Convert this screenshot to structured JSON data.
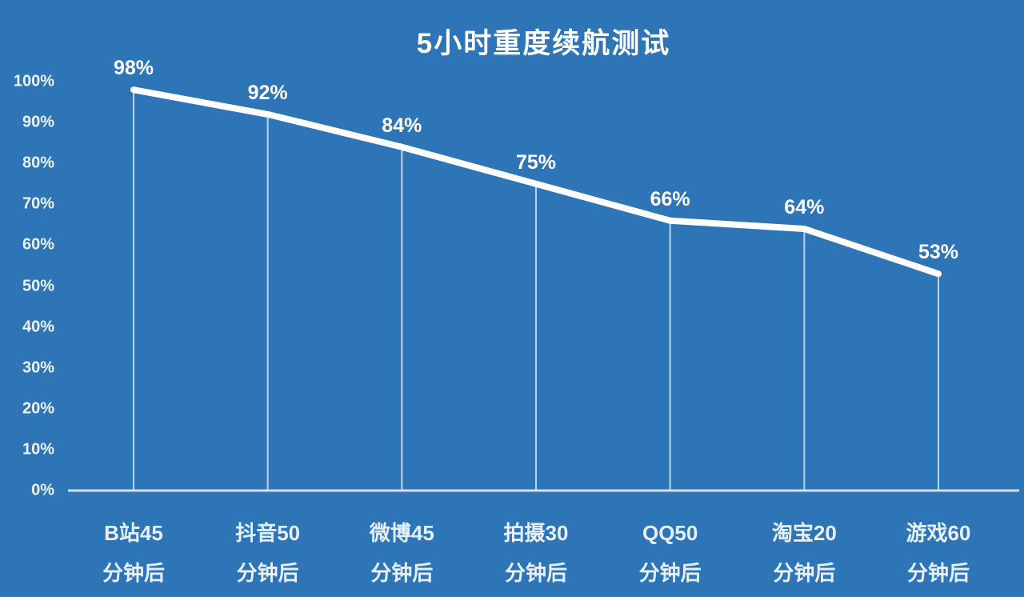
{
  "colors": {
    "background": "#2E75B7",
    "line": "#FFFFFF",
    "axis_line": "#CFE0F0",
    "drop_line": "#BBD5EC",
    "text": "#FFFFFF",
    "tick_text": "#ECF3FB"
  },
  "chart_data": {
    "type": "line",
    "title": "5小时重度续航测试",
    "categories": [
      "B站45\n分钟后",
      "抖音50\n分钟后",
      "微博45\n分钟后",
      "拍摄30\n分钟后",
      "QQ50\n分钟后",
      "淘宝20\n分钟后",
      "游戏60\n分钟后"
    ],
    "values": [
      98,
      92,
      84,
      75,
      66,
      64,
      53
    ],
    "point_labels": [
      "98%",
      "92%",
      "84%",
      "75%",
      "66%",
      "64%",
      "53%"
    ],
    "xlabel": "",
    "ylabel": "",
    "ylim": [
      0,
      100
    ],
    "ytick_step": 10,
    "ytick_labels": [
      "0%",
      "10%",
      "20%",
      "30%",
      "40%",
      "50%",
      "60%",
      "70%",
      "80%",
      "90%",
      "100%"
    ],
    "grid": false,
    "legend": false,
    "annotations": "value labels above each point; thin vertical drop lines from each point to the baseline"
  }
}
